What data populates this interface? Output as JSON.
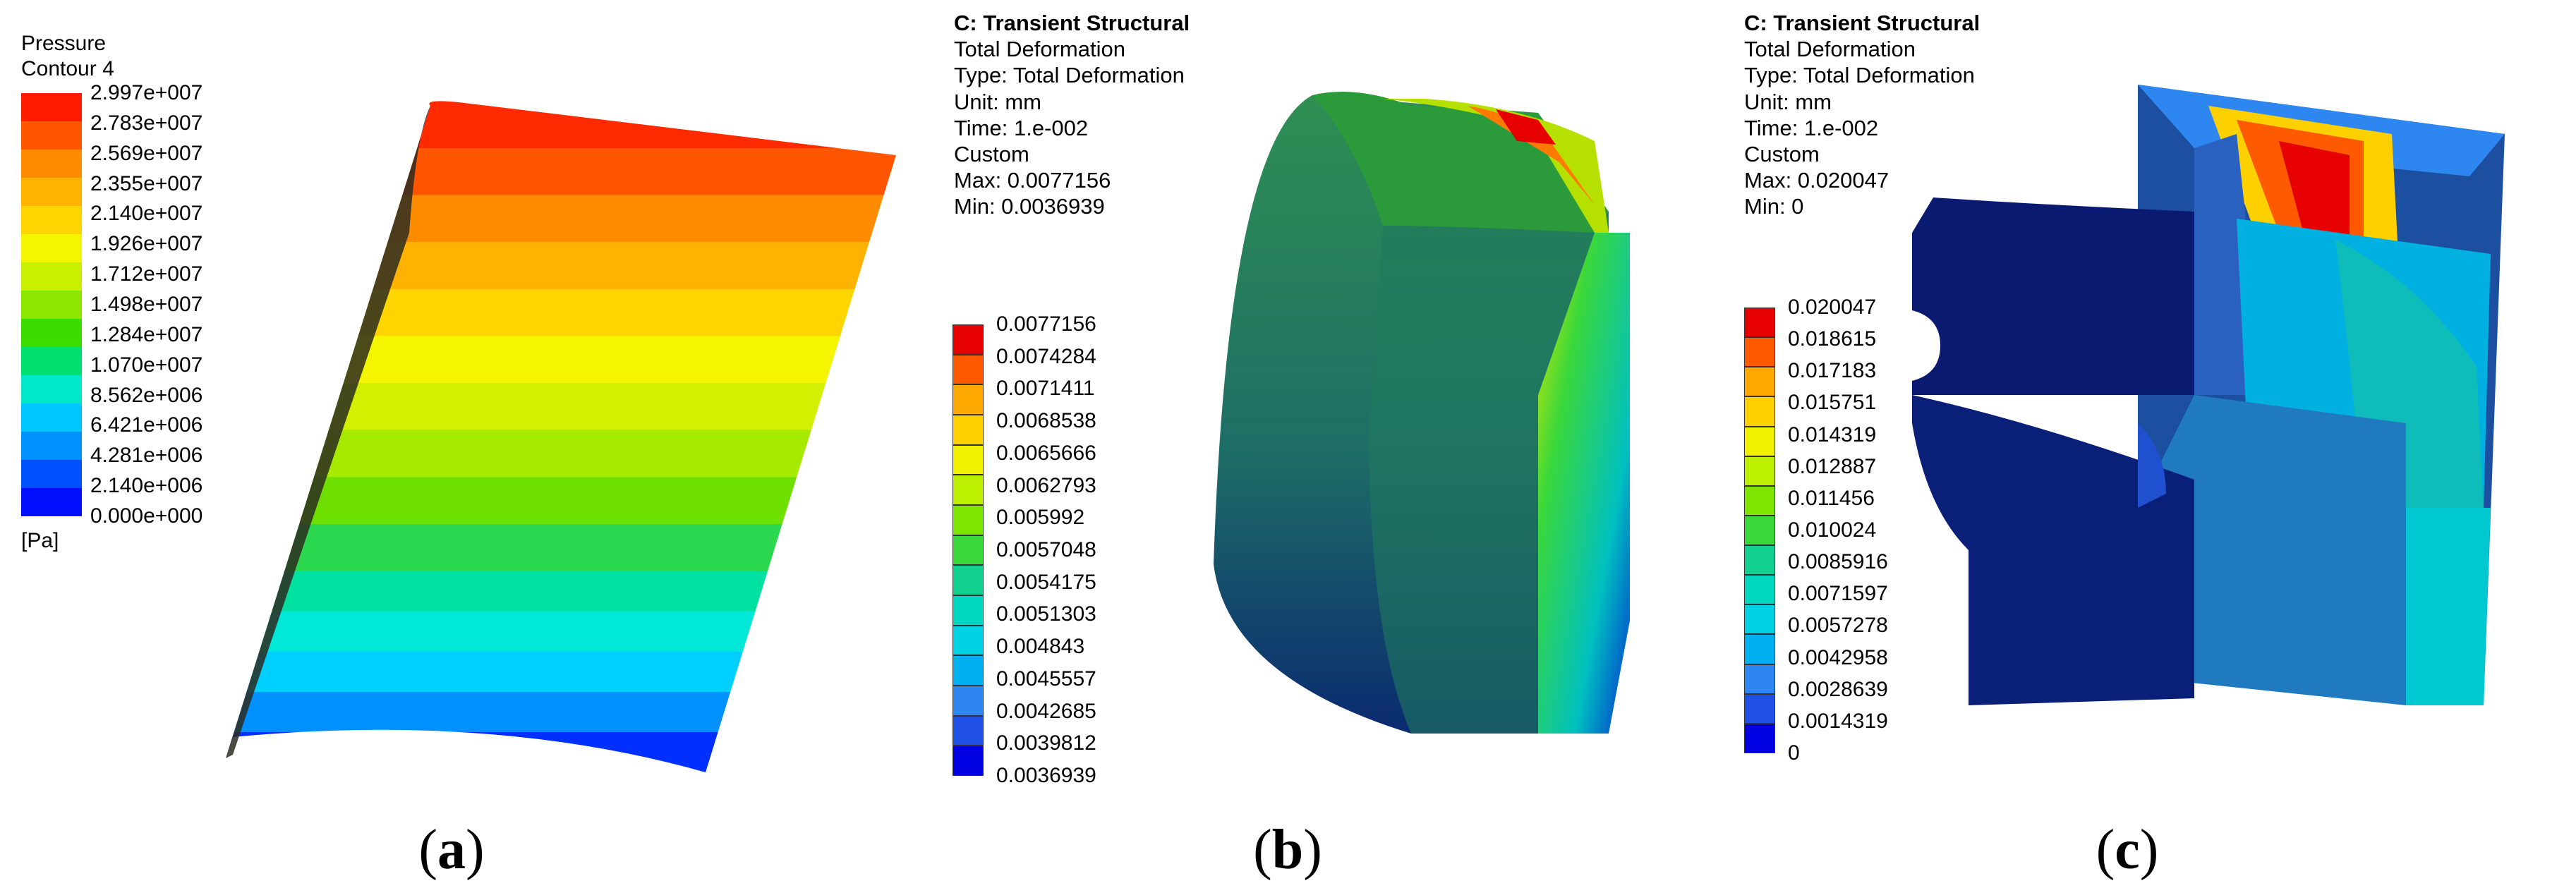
{
  "panels": [
    {
      "id": "a",
      "caption": {
        "open": "(",
        "letter": "a",
        "close": ")"
      },
      "legend": {
        "header": [
          "Pressure",
          "Contour 4"
        ],
        "unit": "[Pa]",
        "values": [
          "2.997e+007",
          "2.783e+007",
          "2.569e+007",
          "2.355e+007",
          "2.140e+007",
          "1.926e+007",
          "1.712e+007",
          "1.498e+007",
          "1.284e+007",
          "1.070e+007",
          "8.562e+006",
          "6.421e+006",
          "4.281e+006",
          "2.140e+006",
          "0.000e+000"
        ],
        "colors": [
          "#ff1a00",
          "#ff5500",
          "#ff8c00",
          "#ffb300",
          "#ffd500",
          "#f5f500",
          "#c8f000",
          "#8ce600",
          "#3cdc00",
          "#00e070",
          "#00e8c8",
          "#00c8ff",
          "#0090ff",
          "#0050ff",
          "#0010ff"
        ]
      }
    },
    {
      "id": "b",
      "caption": {
        "open": "(",
        "letter": "b",
        "close": ")"
      },
      "legend": {
        "header": [
          "C: Transient Structural",
          "Total Deformation",
          "Type: Total Deformation",
          "Unit: mm",
          "Time: 1.e-002",
          "Custom",
          "Max: 0.0077156",
          "Min: 0.0036939"
        ],
        "values": [
          "0.0077156",
          "0.0074284",
          "0.0071411",
          "0.0068538",
          "0.0065666",
          "0.0062793",
          "0.005992",
          "0.0057048",
          "0.0054175",
          "0.0051303",
          "0.004843",
          "0.0045557",
          "0.0042685",
          "0.0039812",
          "0.0036939"
        ],
        "colors": [
          "#e60000",
          "#ff5a00",
          "#ffaa00",
          "#ffd000",
          "#f2f200",
          "#bdf000",
          "#7ee600",
          "#3ad83a",
          "#12d090",
          "#00d8c0",
          "#00d2e6",
          "#00b0f0",
          "#2e86f0",
          "#2050e8",
          "#0000e0"
        ]
      }
    },
    {
      "id": "c",
      "caption": {
        "open": "(",
        "letter": "c",
        "close": ")"
      },
      "legend": {
        "header": [
          "C: Transient Structural",
          "Total Deformation",
          "Type: Total Deformation",
          "Unit: mm",
          "Time: 1.e-002",
          "Custom",
          "Max: 0.020047",
          "Min: 0"
        ],
        "values": [
          "0.020047",
          "0.018615",
          "0.017183",
          "0.015751",
          "0.014319",
          "0.012887",
          "0.011456",
          "0.010024",
          "0.0085916",
          "0.0071597",
          "0.0057278",
          "0.0042958",
          "0.0028639",
          "0.0014319",
          "0"
        ],
        "colors": [
          "#e60000",
          "#ff5a00",
          "#ffaa00",
          "#ffd000",
          "#f2f200",
          "#bdf000",
          "#7ee600",
          "#3ad83a",
          "#12d090",
          "#00d8c0",
          "#00d2e6",
          "#00b0f0",
          "#2e86f0",
          "#2050e8",
          "#0000e0"
        ]
      }
    }
  ]
}
